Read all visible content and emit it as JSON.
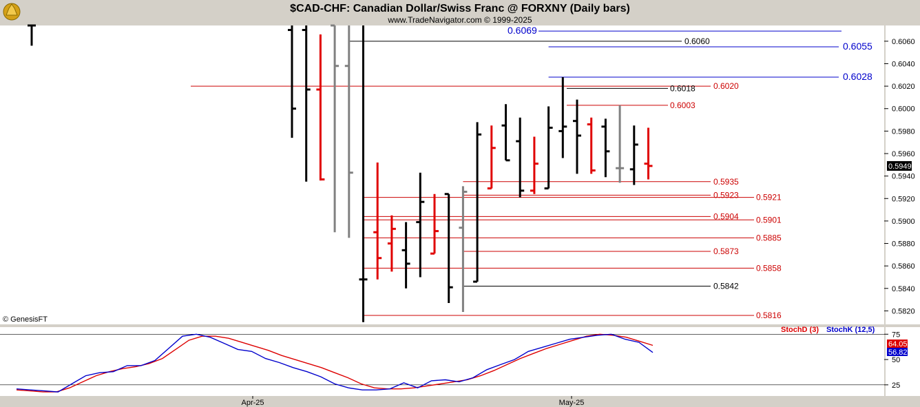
{
  "header": {
    "title": "$CAD-CHF:  Canadian Dollar/Swiss Franc @ FORXNY  (Daily bars)",
    "subtitle": "www.TradeNavigator.com © 1999-2025",
    "logo_icon": "trade-navigator-logo-icon"
  },
  "watermark": "© GenesisFT",
  "colors": {
    "black_bar": "#000000",
    "red_bar": "#e00000",
    "gray_bar": "#808080",
    "blue_level": "#0000cc",
    "red_level": "#cc0000",
    "stoch_d": "#dd0000",
    "stoch_k": "#0000cc",
    "last_price_bg": "#000000"
  },
  "chart_data": [
    {
      "type": "ohlc",
      "title": "$CAD-CHF:  Canadian Dollar/Swiss Franc @ FORXNY  (Daily bars)",
      "x_ticks": [
        "Apr-25",
        "May-25"
      ],
      "ylim": [
        0.5808,
        0.6074
      ],
      "y_ticks": [
        "0.6060",
        "0.6040",
        "0.6020",
        "0.6000",
        "0.5980",
        "0.5960",
        "0.5940",
        "0.5920",
        "0.5900",
        "0.5880",
        "0.5860",
        "0.5840",
        "0.5820"
      ],
      "last_price": "0.5949",
      "bars": [
        {
          "o": 0.61,
          "h": 0.61,
          "l": 0.6056,
          "c": 0.61,
          "color": "black"
        },
        {
          "o": 0.607,
          "h": 0.61,
          "l": 0.5974,
          "c": 0.6,
          "color": "black"
        },
        {
          "o": 0.607,
          "h": 0.61,
          "l": 0.5935,
          "c": 0.6017,
          "color": "black"
        },
        {
          "o": 0.6017,
          "h": 0.6066,
          "l": 0.5936,
          "c": 0.5937,
          "color": "red"
        },
        {
          "o": 0.61,
          "h": 0.61,
          "l": 0.589,
          "c": 0.6038,
          "color": "gray"
        },
        {
          "o": 0.6038,
          "h": 0.61,
          "l": 0.5885,
          "c": 0.5943,
          "color": "gray"
        },
        {
          "o": 0.5848,
          "h": 0.61,
          "l": 0.581,
          "c": 0.5848,
          "color": "black"
        },
        {
          "o": 0.589,
          "h": 0.5952,
          "l": 0.5848,
          "c": 0.5867,
          "color": "red"
        },
        {
          "o": 0.588,
          "h": 0.5905,
          "l": 0.5855,
          "c": 0.5893,
          "color": "red"
        },
        {
          "o": 0.5874,
          "h": 0.5899,
          "l": 0.584,
          "c": 0.5862,
          "color": "black"
        },
        {
          "o": 0.5899,
          "h": 0.5943,
          "l": 0.585,
          "c": 0.5917,
          "color": "black"
        },
        {
          "o": 0.5871,
          "h": 0.5924,
          "l": 0.5871,
          "c": 0.5891,
          "color": "red"
        },
        {
          "o": 0.5924,
          "h": 0.5924,
          "l": 0.5827,
          "c": 0.5841,
          "color": "black"
        },
        {
          "o": 0.5894,
          "h": 0.5931,
          "l": 0.5819,
          "c": 0.5926,
          "color": "gray"
        },
        {
          "o": 0.5846,
          "h": 0.5988,
          "l": 0.5846,
          "c": 0.5977,
          "color": "black"
        },
        {
          "o": 0.5929,
          "h": 0.5985,
          "l": 0.5929,
          "c": 0.5965,
          "color": "red"
        },
        {
          "o": 0.5985,
          "h": 0.6004,
          "l": 0.5954,
          "c": 0.5954,
          "color": "black"
        },
        {
          "o": 0.5971,
          "h": 0.5992,
          "l": 0.5921,
          "c": 0.5927,
          "color": "black"
        },
        {
          "o": 0.5927,
          "h": 0.5975,
          "l": 0.5924,
          "c": 0.5951,
          "color": "red"
        },
        {
          "o": 0.5929,
          "h": 0.6002,
          "l": 0.5929,
          "c": 0.5983,
          "color": "black"
        },
        {
          "o": 0.598,
          "h": 0.6028,
          "l": 0.5956,
          "c": 0.5984,
          "color": "black"
        },
        {
          "o": 0.5989,
          "h": 0.6008,
          "l": 0.5942,
          "c": 0.5976,
          "color": "black"
        },
        {
          "o": 0.5986,
          "h": 0.5992,
          "l": 0.5942,
          "c": 0.5945,
          "color": "red"
        },
        {
          "o": 0.5984,
          "h": 0.5991,
          "l": 0.5939,
          "c": 0.5962,
          "color": "black"
        },
        {
          "o": 0.5947,
          "h": 0.6003,
          "l": 0.5934,
          "c": 0.5947,
          "color": "gray"
        },
        {
          "o": 0.5946,
          "h": 0.5985,
          "l": 0.5932,
          "c": 0.5968,
          "color": "black"
        },
        {
          "o": 0.5951,
          "h": 0.5983,
          "l": 0.5937,
          "c": 0.5949,
          "color": "red"
        }
      ],
      "levels": [
        {
          "label": "0.6069",
          "value": 0.6069,
          "color": "blue",
          "from_bar": 24,
          "label_side": "left"
        },
        {
          "label": "0.6060",
          "value": 0.606,
          "color": "black",
          "from_bar": 5,
          "label_side": "inline"
        },
        {
          "label": "0.6055",
          "value": 0.6055,
          "color": "blue",
          "from_bar": 19,
          "label_side": "right"
        },
        {
          "label": "0.6028",
          "value": 0.6028,
          "color": "blue",
          "from_bar": 19,
          "label_side": "right"
        },
        {
          "label": "0.6020",
          "value": 0.602,
          "color": "red",
          "from_bar": 1,
          "label_side": "inline"
        },
        {
          "label": "0.6018",
          "value": 0.6018,
          "color": "black",
          "from_bar": 20,
          "label_side": "inline"
        },
        {
          "label": "0.6003",
          "value": 0.6003,
          "color": "red",
          "from_bar": 20,
          "label_side": "inline"
        },
        {
          "label": "0.5935",
          "value": 0.5935,
          "color": "red",
          "from_bar": 13,
          "label_side": "inline"
        },
        {
          "label": "0.5923",
          "value": 0.5923,
          "color": "red",
          "from_bar": 13,
          "label_side": "inline"
        },
        {
          "label": "0.5921",
          "value": 0.5921,
          "color": "red",
          "from_bar": 6,
          "label_side": "far"
        },
        {
          "label": "0.5904",
          "value": 0.5904,
          "color": "red",
          "from_bar": 6,
          "label_side": "inline"
        },
        {
          "label": "0.5901",
          "value": 0.5901,
          "color": "red",
          "from_bar": 6,
          "label_side": "far"
        },
        {
          "label": "0.5885",
          "value": 0.5885,
          "color": "red",
          "from_bar": 6,
          "label_side": "far"
        },
        {
          "label": "0.5873",
          "value": 0.5873,
          "color": "red",
          "from_bar": 13,
          "label_side": "inline"
        },
        {
          "label": "0.5858",
          "value": 0.5858,
          "color": "red",
          "from_bar": 6,
          "label_side": "far"
        },
        {
          "label": "0.5842",
          "value": 0.5842,
          "color": "black",
          "from_bar": 13,
          "label_side": "inline"
        },
        {
          "label": "0.5816",
          "value": 0.5816,
          "color": "red",
          "from_bar": 6,
          "label_side": "far"
        }
      ]
    },
    {
      "type": "line",
      "legend": [
        "StochD (3)",
        "StochK (12,5)"
      ],
      "ylim": [
        14,
        82
      ],
      "y_ticks": [
        "75",
        "50",
        "25"
      ],
      "last_values": [
        "64.05",
        "56.82"
      ],
      "series": [
        {
          "name": "StochD (3)",
          "color": "red",
          "values": [
            20,
            19,
            18,
            18,
            22,
            28,
            34,
            38,
            41,
            43,
            46,
            51,
            60,
            69,
            73,
            73,
            71,
            67,
            63,
            59,
            54,
            50,
            46,
            42,
            37,
            32,
            26,
            22,
            21,
            21,
            22,
            24,
            26,
            28,
            30,
            34,
            39,
            45,
            51,
            56,
            61,
            65,
            69,
            73,
            75,
            74,
            72,
            68,
            64
          ]
        },
        {
          "name": "StochK (12,5)",
          "color": "blue",
          "values": [
            21,
            20,
            19,
            18,
            26,
            34,
            37,
            38,
            44,
            44,
            49,
            61,
            73,
            75,
            72,
            66,
            60,
            58,
            51,
            47,
            42,
            38,
            33,
            26,
            22,
            20,
            20,
            21,
            27,
            22,
            29,
            30,
            28,
            32,
            40,
            45,
            50,
            58,
            62,
            66,
            70,
            72,
            74,
            75,
            70,
            67,
            57
          ]
        }
      ]
    }
  ]
}
